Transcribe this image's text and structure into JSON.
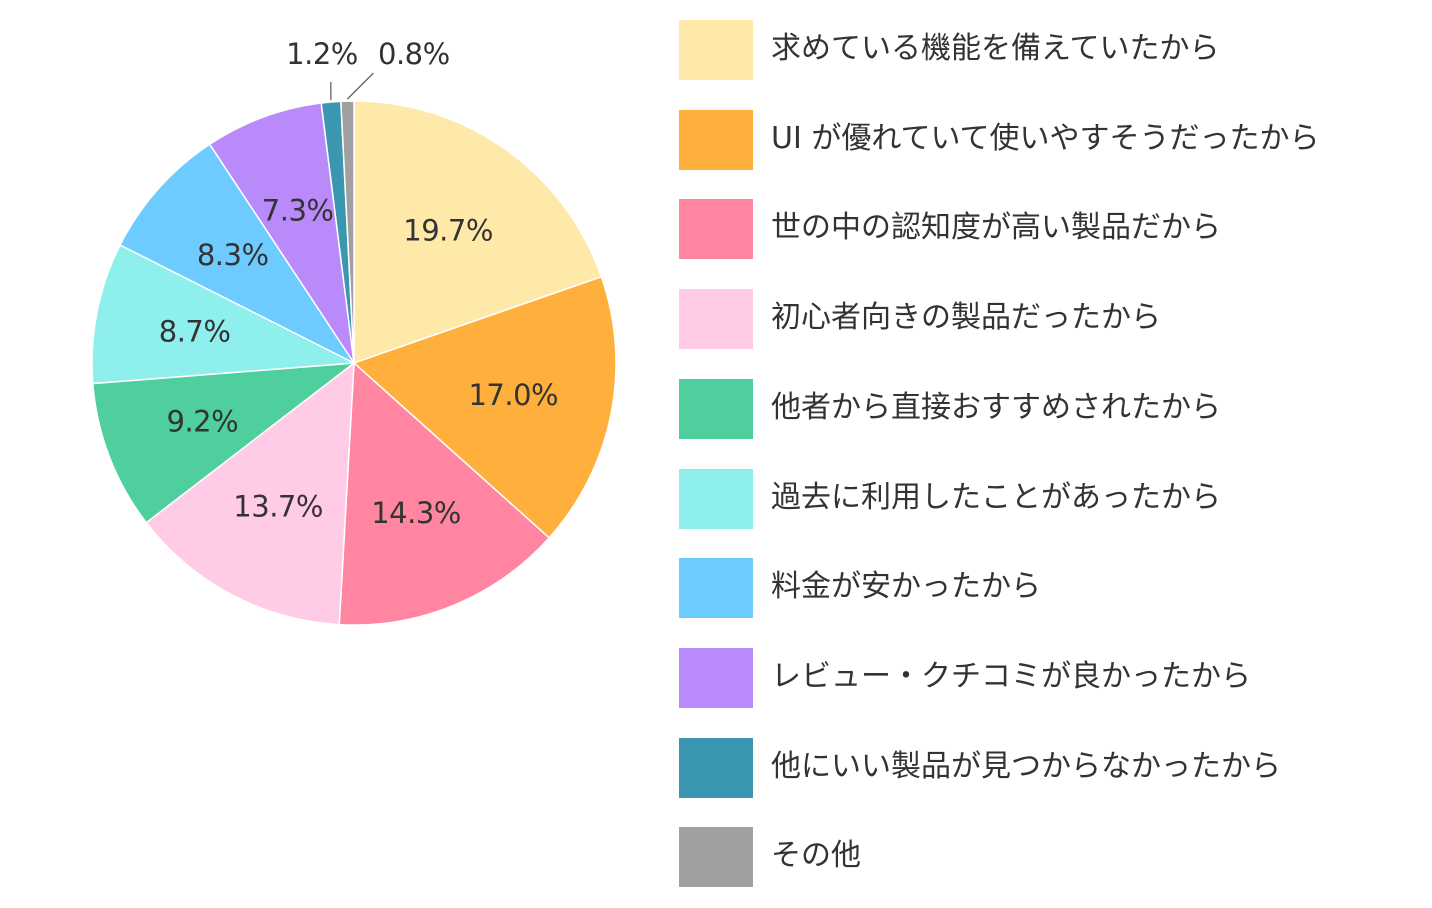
{
  "chart_data": {
    "type": "pie",
    "title": "",
    "slices": [
      {
        "name": "求めている機能を備えていたから",
        "value": 19.7,
        "label": "19.7%",
        "color": "#FFE9A8"
      },
      {
        "name": "UI が優れていて使いやすそうだったから",
        "value": 17.0,
        "label": "17.0%",
        "color": "#FFAF3C"
      },
      {
        "name": "世の中の認知度が高い製品だから",
        "value": 14.3,
        "label": "14.3%",
        "color": "#FF85A0"
      },
      {
        "name": "初心者向きの製品だったから",
        "value": 13.7,
        "label": "13.7%",
        "color": "#FFCBE6"
      },
      {
        "name": "他者から直接おすすめされたから",
        "value": 9.2,
        "label": "9.2%",
        "color": "#4ECF9D"
      },
      {
        "name": "過去に利用したことがあったから",
        "value": 8.7,
        "label": "8.7%",
        "color": "#8EEFEC"
      },
      {
        "name": "料金が安かったから",
        "value": 8.3,
        "label": "8.3%",
        "color": "#6ECBFF"
      },
      {
        "name": "レビュー・クチコミが良かったから",
        "value": 7.3,
        "label": "7.3%",
        "color": "#B98AF9"
      },
      {
        "name": "他にいい製品が見つからなかったから",
        "value": 1.2,
        "label": "1.2%",
        "color": "#3A97AF"
      },
      {
        "name": "その他",
        "value": 0.8,
        "label": "0.8%",
        "color": "#A0A0A0"
      }
    ],
    "legend_position": "right",
    "start_angle": "top, clockwise"
  }
}
